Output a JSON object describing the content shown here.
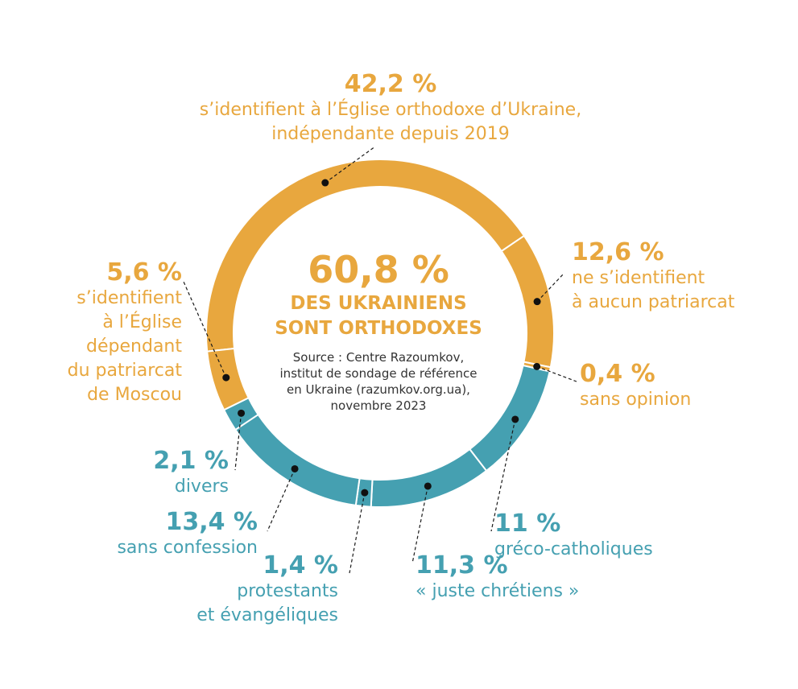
{
  "chart_data": {
    "type": "pie",
    "style": "donut",
    "unit": "%",
    "slices": [
      {
        "value_label": "42,2 %",
        "value": 42.2,
        "label": "s’identifient à l’Église orthodoxe d’Ukraine,\nindépendante depuis 2019",
        "color": "#e8a73e"
      },
      {
        "value_label": "12,6 %",
        "value": 12.6,
        "label": "ne s’identifient\nà aucun patriarcat",
        "color": "#e8a73e"
      },
      {
        "value_label": "0,4 %",
        "value": 0.4,
        "label": "sans opinion",
        "color": "#e8a73e"
      },
      {
        "value_label": "11 %",
        "value": 11,
        "label": "gréco-catholiques",
        "color": "#45a0b1"
      },
      {
        "value_label": "11,3 %",
        "value": 11.3,
        "label": "« juste chrétiens »",
        "color": "#45a0b1"
      },
      {
        "value_label": "1,4 %",
        "value": 1.4,
        "label": "protestants\net évangéliques",
        "color": "#45a0b1"
      },
      {
        "value_label": "13,4 %",
        "value": 13.4,
        "label": "sans confession",
        "color": "#45a0b1"
      },
      {
        "value_label": "2,1 %",
        "value": 2.1,
        "label": "divers",
        "color": "#45a0b1"
      },
      {
        "value_label": "5,6 %",
        "value": 5.6,
        "label": "s’identifient\nà l’Église\ndépendant\ndu patriarcat\nde Moscou",
        "color": "#e8a73e"
      }
    ]
  },
  "center": {
    "value": "60,8 %",
    "text": "DES UKRAINIENS\nSONT ORTHODOXES",
    "source": "Source : Centre Razoumkov,\ninstitut de sondage de référence\nen Ukraine (razumkov.org.ua),\nnovembre 2023"
  }
}
